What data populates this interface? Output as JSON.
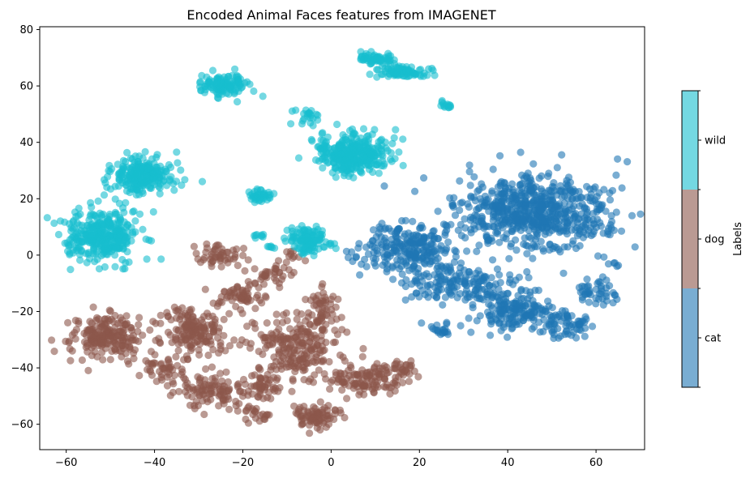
{
  "chart_data": {
    "type": "scatter",
    "title": "Encoded Animal Faces features from IMAGENET",
    "xlabel": "",
    "ylabel": "",
    "xlim": [
      -66,
      71
    ],
    "ylim": [
      -69,
      81
    ],
    "x_ticks": [
      -60,
      -40,
      -20,
      0,
      20,
      40,
      60
    ],
    "y_ticks": [
      -60,
      -40,
      -20,
      0,
      20,
      40,
      60,
      80
    ],
    "grid": false,
    "marker_alpha": 0.6,
    "colorbar": {
      "label": "Labels",
      "categories": [
        "cat",
        "dog",
        "wild"
      ],
      "colors": [
        "#1f77b4",
        "#8c564b",
        "#17becf"
      ]
    },
    "series": [
      {
        "label_index": 0,
        "color": "#1f77b4",
        "clusters": [
          {
            "x": 46,
            "y": 15,
            "sx": 8.5,
            "sy": 6.5,
            "n": 650
          },
          {
            "x": 18,
            "y": 2,
            "sx": 5,
            "sy": 4.5,
            "n": 250
          },
          {
            "x": 31,
            "y": -10,
            "sx": 7,
            "sy": 4,
            "n": 170
          },
          {
            "x": 41,
            "y": -20,
            "sx": 4,
            "sy": 3.5,
            "n": 140
          },
          {
            "x": 53,
            "y": -24,
            "sx": 3,
            "sy": 2.5,
            "n": 70
          },
          {
            "x": 60,
            "y": -13,
            "sx": 2.5,
            "sy": 2.5,
            "n": 45
          },
          {
            "x": 25,
            "y": -26,
            "sx": 2,
            "sy": 1.5,
            "n": 22
          },
          {
            "x": 64,
            "y": -3,
            "sx": 0.6,
            "sy": 0.6,
            "n": 5
          }
        ]
      },
      {
        "label_index": 1,
        "color": "#8c564b",
        "clusters": [
          {
            "x": -51,
            "y": -29,
            "sx": 4,
            "sy": 4.5,
            "n": 200
          },
          {
            "x": -31,
            "y": -27,
            "sx": 4,
            "sy": 5,
            "n": 170
          },
          {
            "x": -26,
            "y": -48,
            "sx": 3.5,
            "sy": 3,
            "n": 100
          },
          {
            "x": -39,
            "y": -40,
            "sx": 2.5,
            "sy": 2.5,
            "n": 45
          },
          {
            "x": -25,
            "y": 0,
            "sx": 2.5,
            "sy": 2,
            "n": 50
          },
          {
            "x": -20,
            "y": -14,
            "sx": 2.5,
            "sy": 2.5,
            "n": 60
          },
          {
            "x": -16,
            "y": -47,
            "sx": 2,
            "sy": 2,
            "n": 45
          },
          {
            "x": -16,
            "y": -57,
            "sx": 1.5,
            "sy": 1.5,
            "n": 20
          },
          {
            "x": -8,
            "y": -33,
            "sx": 5,
            "sy": 6,
            "n": 220
          },
          {
            "x": -2,
            "y": -19,
            "sx": 2,
            "sy": 3,
            "n": 50
          },
          {
            "x": -3,
            "y": -57,
            "sx": 3,
            "sy": 2,
            "n": 80
          },
          {
            "x": 5,
            "y": -44,
            "sx": 3,
            "sy": 3,
            "n": 60
          },
          {
            "x": 11,
            "y": -44,
            "sx": 3,
            "sy": 2.5,
            "n": 60
          },
          {
            "x": 16,
            "y": -40,
            "sx": 2,
            "sy": 1.5,
            "n": 25
          },
          {
            "x": -14,
            "y": -7,
            "sx": 2.5,
            "sy": 1.5,
            "n": 30
          },
          {
            "x": -10,
            "y": 0,
            "sx": 1.5,
            "sy": 1.5,
            "n": 12
          }
        ]
      },
      {
        "label_index": 2,
        "color": "#17becf",
        "clusters": [
          {
            "x": -52,
            "y": 7,
            "sx": 4,
            "sy": 4.5,
            "n": 340
          },
          {
            "x": -43,
            "y": 28,
            "sx": 3.5,
            "sy": 3,
            "n": 240
          },
          {
            "x": -24,
            "y": 60,
            "sx": 2.5,
            "sy": 2,
            "n": 120
          },
          {
            "x": 5,
            "y": 36,
            "sx": 4,
            "sy": 3.5,
            "n": 340
          },
          {
            "x": -5,
            "y": 5,
            "sx": 2.5,
            "sy": 2.5,
            "n": 120
          },
          {
            "x": -5,
            "y": 49,
            "sx": 1.5,
            "sy": 1.5,
            "n": 22
          },
          {
            "x": -16,
            "y": 21,
            "sx": 1.3,
            "sy": 1.1,
            "n": 40
          },
          {
            "x": 10,
            "y": 70,
            "sx": 2,
            "sy": 1,
            "n": 60
          },
          {
            "x": 16,
            "y": 65,
            "sx": 3,
            "sy": 1.2,
            "n": 80
          },
          {
            "x": 26,
            "y": 53,
            "sx": 0.8,
            "sy": 0.7,
            "n": 14
          },
          {
            "x": -16,
            "y": 7,
            "sx": 1,
            "sy": 0.6,
            "n": 8
          },
          {
            "x": -13,
            "y": 3,
            "sx": 1,
            "sy": 0.8,
            "n": 6
          }
        ]
      }
    ]
  }
}
